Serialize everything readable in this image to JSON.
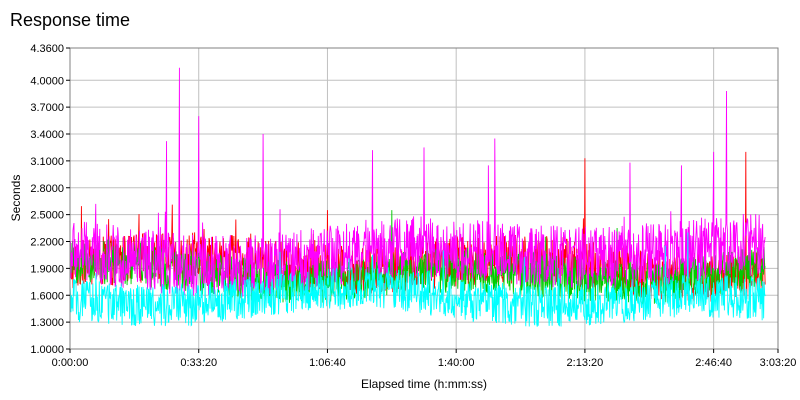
{
  "chart_data": {
    "type": "line",
    "title": "Response time",
    "xlabel": "Elapsed time (h:mm:ss)",
    "ylabel": "Seconds",
    "x_ticks": [
      "0:00:00",
      "0:33:20",
      "1:06:40",
      "1:40:00",
      "2:13:20",
      "2:46:40",
      "3:03:20"
    ],
    "x_tick_seconds": [
      0,
      2000,
      4000,
      6000,
      8000,
      10000,
      11000
    ],
    "xlim_seconds": [
      0,
      11000
    ],
    "data_end_seconds": 10800,
    "y_ticks": [
      "1.0000",
      "1.3000",
      "1.6000",
      "1.9000",
      "2.2000",
      "2.5000",
      "2.8000",
      "3.1000",
      "3.4000",
      "3.7000",
      "4.0000",
      "4.3600"
    ],
    "y_tick_values": [
      1.0,
      1.3,
      1.6,
      1.9,
      2.2,
      2.5,
      2.8,
      3.1,
      3.4,
      3.7,
      4.0,
      4.36
    ],
    "ylim": [
      1.0,
      4.36
    ],
    "grid": true,
    "series": [
      {
        "color": "#ff0000",
        "mean": 1.92,
        "spread": 0.28,
        "spikes": [
          [
            600,
            2.45
          ],
          [
            4000,
            2.55
          ],
          [
            8000,
            3.13
          ],
          [
            10500,
            3.2
          ]
        ]
      },
      {
        "color": "#00cc00",
        "mean": 1.85,
        "spread": 0.25,
        "spikes": [
          [
            5000,
            2.55
          ],
          [
            8500,
            2.35
          ]
        ]
      },
      {
        "color": "#ff00ff",
        "mean": 2.05,
        "spread": 0.35,
        "spikes": [
          [
            1500,
            3.32
          ],
          [
            1700,
            4.14
          ],
          [
            2000,
            3.6
          ],
          [
            3000,
            3.4
          ],
          [
            4700,
            3.22
          ],
          [
            5500,
            3.25
          ],
          [
            6600,
            3.35
          ],
          [
            6500,
            3.05
          ],
          [
            9500,
            3.05
          ],
          [
            10200,
            3.88
          ],
          [
            10000,
            3.2
          ],
          [
            8700,
            3.08
          ],
          [
            400,
            2.62
          ]
        ]
      },
      {
        "color": "#00ffff",
        "mean": 1.55,
        "spread": 0.24,
        "spikes": [
          [
            4700,
            2.05
          ],
          [
            5800,
            2.1
          ],
          [
            9600,
            2.3
          ]
        ]
      }
    ]
  }
}
